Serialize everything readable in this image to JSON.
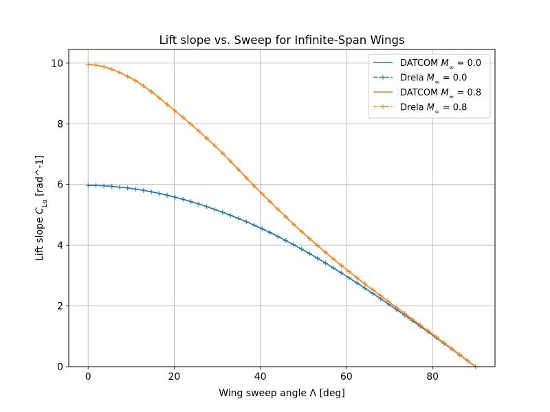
{
  "chart_data": {
    "type": "line",
    "title": "Lift slope vs. Sweep for Infinite-Span Wings",
    "xlabel": "Wing sweep angle Λ [deg]",
    "ylabel": "Lift slope Cₗα [rad^-1]",
    "ylabel_parts": {
      "pre": "Lift slope ",
      "sym": "C",
      "sub": "Lα",
      "post": " [rad^-1]"
    },
    "xlim": [
      -4.5,
      94.5
    ],
    "ylim": [
      0,
      10.45
    ],
    "xticks": [
      0,
      20,
      40,
      60,
      80
    ],
    "yticks": [
      0,
      2,
      4,
      6,
      8,
      10
    ],
    "grid": true,
    "legend_position": "top-right",
    "legend": [
      {
        "pre": "DATCOM ",
        "sym": "M",
        "sub": "∞",
        "post": " = 0.0",
        "series": 0
      },
      {
        "pre": "Drela ",
        "sym": "M",
        "sub": "∞",
        "post": " = 0.0",
        "series": 1
      },
      {
        "pre": "DATCOM ",
        "sym": "M",
        "sub": "∞",
        "post": " = 0.8",
        "series": 2
      },
      {
        "pre": "Drela ",
        "sym": "M",
        "sub": "∞",
        "post": " = 0.8",
        "series": 3
      }
    ],
    "x": [
      0,
      10,
      20,
      30,
      40,
      50,
      60,
      70,
      80,
      90
    ],
    "series": [
      {
        "name": "DATCOM M∞ = 0.0",
        "color": "#1f77b4",
        "style": "solid",
        "marker": "none",
        "values": [
          5.97,
          5.87,
          5.59,
          5.15,
          4.57,
          3.84,
          2.98,
          2.04,
          1.04,
          0.0
        ]
      },
      {
        "name": "Drela M∞ = 0.0",
        "color": "#1f77b4",
        "style": "dashed",
        "marker": "plus",
        "values": [
          5.97,
          5.87,
          5.59,
          5.15,
          4.57,
          3.84,
          2.98,
          2.04,
          1.04,
          0.0
        ]
      },
      {
        "name": "DATCOM M∞ = 0.8",
        "color": "#ff7f0e",
        "style": "solid",
        "marker": "none",
        "values": [
          9.95,
          9.5,
          8.45,
          7.2,
          5.75,
          4.4,
          3.2,
          2.12,
          1.07,
          0.0
        ]
      },
      {
        "name": "Drela M∞ = 0.8",
        "color": "#ff7f0e",
        "style": "dashed",
        "marker": "plus",
        "values": [
          9.95,
          9.5,
          8.45,
          7.2,
          5.75,
          4.4,
          3.2,
          2.12,
          1.07,
          0.0
        ]
      }
    ]
  }
}
